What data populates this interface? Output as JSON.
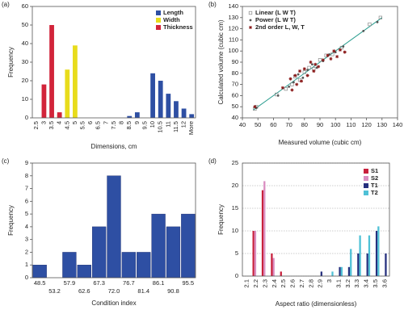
{
  "chart_data": [
    {
      "type": "bar",
      "panel_label": "(a)",
      "x_label": "Dimensions, cm",
      "y_label": "Frequency",
      "categories": [
        "2.5",
        "3",
        "3.5",
        "4",
        "4.5",
        "5",
        "5.5",
        "6",
        "6.5",
        "7",
        "7.5",
        "8",
        "8.5",
        "9",
        "9.5",
        "10",
        "10.5",
        "11",
        "11.5",
        "12",
        "More"
      ],
      "series": [
        {
          "name": "Length",
          "color": "#2e4fa3",
          "values": [
            0,
            0,
            0,
            0,
            0,
            0,
            0,
            0,
            0,
            0,
            0,
            0,
            1,
            3,
            0,
            24,
            20,
            13,
            9,
            5,
            2
          ]
        },
        {
          "name": "Width",
          "color": "#e8dc1c",
          "values": [
            0,
            0,
            0,
            2,
            26,
            39,
            0,
            0,
            0,
            0,
            0,
            0,
            0,
            0,
            0,
            0,
            0,
            0,
            0,
            0,
            0
          ]
        },
        {
          "name": "Thickness",
          "color": "#d2243a",
          "values": [
            0,
            18,
            50,
            3,
            0,
            0,
            0,
            0,
            0,
            0,
            0,
            0,
            0,
            0,
            0,
            0,
            0,
            0,
            0,
            0,
            0
          ]
        }
      ],
      "ylim": [
        0,
        60
      ],
      "yticks": [
        0,
        10,
        20,
        30,
        40,
        50,
        60
      ],
      "xtick_rotation": -90,
      "grouped": false,
      "grid": false
    },
    {
      "type": "scatter",
      "panel_label": "(b)",
      "x_label": "Measured volume (cubic cm)",
      "y_label": "Calculated volume (cubic cm)",
      "series": [
        {
          "name": "Linear (L W T)",
          "color": "#8a8a8a",
          "marker": "square",
          "x": [
            48,
            49,
            62,
            68,
            72,
            74,
            77,
            80,
            83,
            86,
            90,
            94,
            98,
            104,
            122,
            129
          ],
          "y": [
            48,
            50,
            61,
            66,
            70,
            77,
            74,
            81,
            85,
            84,
            92,
            96,
            97,
            103,
            124,
            130
          ]
        },
        {
          "name": "Power (L W T)",
          "color": "#555555",
          "marker": "circle",
          "x": [
            49,
            63,
            70,
            73,
            76,
            79,
            82,
            85,
            88,
            92,
            96,
            100,
            105,
            118,
            127
          ],
          "y": [
            49,
            60,
            68,
            72,
            79,
            76,
            83,
            88,
            85,
            91,
            97,
            99,
            104,
            118,
            126
          ]
        },
        {
          "name": "2nd order L, W, T",
          "color": "#8b1a1a",
          "marker": "star",
          "x": [
            48,
            66,
            71,
            72,
            74,
            75,
            77,
            78,
            80,
            82,
            84,
            86,
            87,
            89,
            92,
            95,
            97,
            99,
            101,
            103,
            106
          ],
          "y": [
            50,
            67,
            75,
            65,
            78,
            70,
            82,
            73,
            84,
            78,
            90,
            82,
            88,
            86,
            92,
            96,
            93,
            100,
            95,
            101,
            99
          ]
        }
      ],
      "fit_line": {
        "color": "#2a9d8f",
        "x": [
          47,
          130
        ],
        "y": [
          47,
          130
        ]
      },
      "xlim": [
        40,
        140
      ],
      "xticks": [
        40,
        50,
        60,
        70,
        80,
        90,
        100,
        110,
        120,
        130,
        140
      ],
      "ylim": [
        40,
        140
      ],
      "yticks": [
        40,
        50,
        60,
        70,
        80,
        90,
        100,
        110,
        120,
        130,
        140
      ],
      "grid": false
    },
    {
      "type": "bar",
      "panel_label": "(c)",
      "x_label": "Condition index",
      "y_label": "Frequency",
      "categories": [
        "48.5",
        "53.2",
        "57.9",
        "62.6",
        "67.3",
        "72.0",
        "76.7",
        "81.4",
        "86.1",
        "90.8",
        "95.5"
      ],
      "values": [
        1,
        0,
        2,
        1,
        4,
        8,
        2,
        2,
        5,
        4,
        5
      ],
      "color": "#2e4fa3",
      "ylim": [
        0,
        9
      ],
      "yticks": [
        0,
        1,
        2,
        3,
        4,
        5,
        6,
        7,
        8,
        9
      ],
      "label_stagger": true,
      "grouped": false,
      "grid": false
    },
    {
      "type": "bar",
      "panel_label": "(d)",
      "x_label": "Aspect ratio (dimensionless)",
      "y_label": "Frequency",
      "categories": [
        "2.1",
        "2.2",
        "2.3",
        "2.4",
        "2.5",
        "2.6",
        "2.7",
        "2.8",
        "2.9",
        "3",
        "3.1",
        "3.2",
        "3.3",
        "3.4",
        "3.5",
        "3.6"
      ],
      "series": [
        {
          "name": "S1",
          "color": "#c8203c",
          "values": [
            0,
            10,
            19,
            5,
            1,
            0,
            0,
            0,
            0,
            0,
            0,
            0,
            0,
            0,
            0,
            0
          ]
        },
        {
          "name": "S2",
          "color": "#d98cc0",
          "values": [
            0,
            10,
            21,
            4,
            0,
            0,
            0,
            0,
            0,
            0,
            0,
            0,
            0,
            0,
            0,
            0
          ]
        },
        {
          "name": "T1",
          "color": "#26307e",
          "values": [
            0,
            0,
            0,
            0,
            0,
            0,
            0,
            0,
            1,
            0,
            2,
            2,
            5,
            5,
            10,
            5
          ]
        },
        {
          "name": "T2",
          "color": "#4fc1d6",
          "values": [
            0,
            0,
            0,
            0,
            0,
            0,
            0,
            0,
            0,
            1,
            2,
            6,
            9,
            9,
            11,
            0
          ]
        }
      ],
      "ylim": [
        0,
        25
      ],
      "yticks": [
        0,
        5,
        10,
        15,
        20,
        25
      ],
      "xtick_rotation": -90,
      "grouped": true,
      "grid": true
    }
  ]
}
